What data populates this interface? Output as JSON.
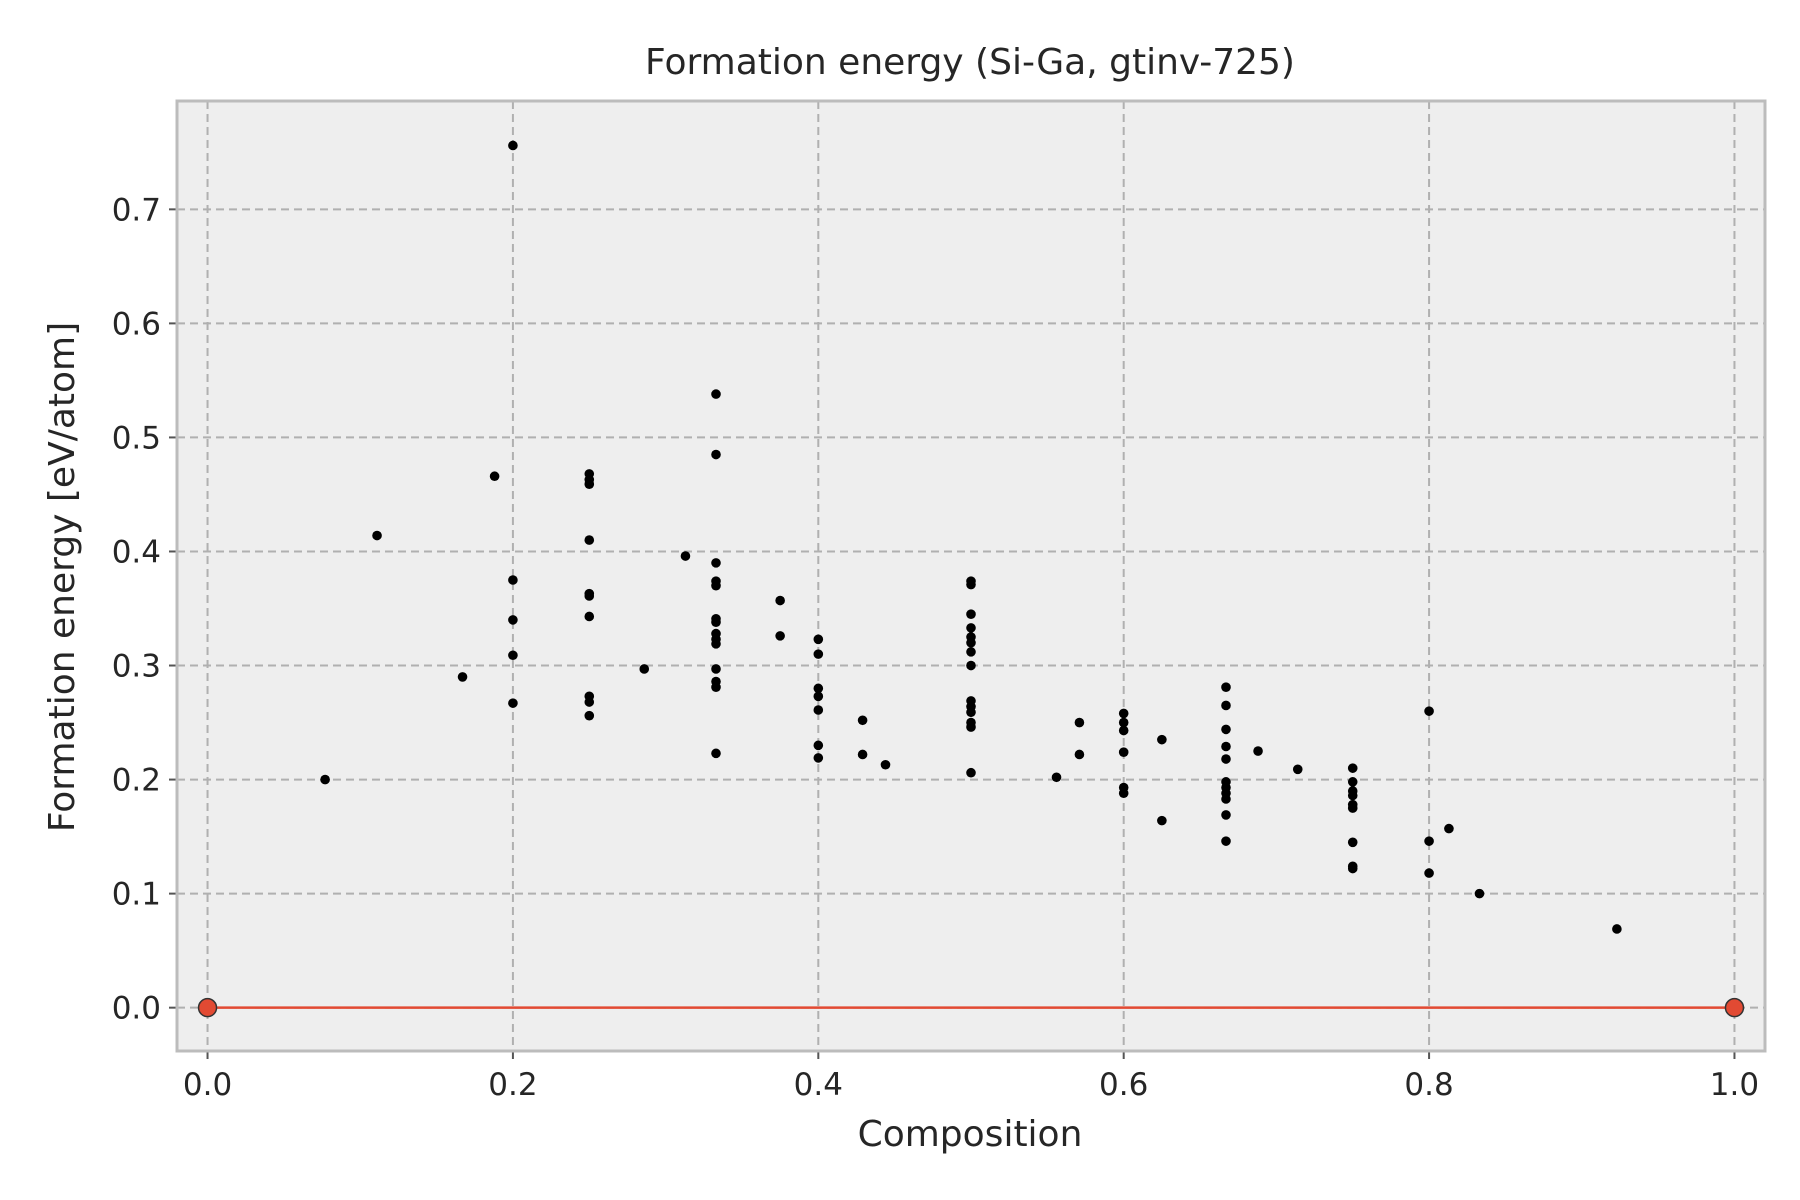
{
  "chart_data": {
    "type": "scatter",
    "title": "Formation energy (Si-Ga, gtinv-725)",
    "xlabel": "Composition",
    "ylabel": "Formation energy [eV/atom]",
    "xlim": [
      -0.02,
      1.02
    ],
    "ylim": [
      -0.038,
      0.795
    ],
    "x_ticks": [
      0.0,
      0.2,
      0.4,
      0.6,
      0.8,
      1.0
    ],
    "y_ticks": [
      0.0,
      0.1,
      0.2,
      0.3,
      0.4,
      0.5,
      0.6,
      0.7
    ],
    "x_tick_labels": [
      "0.0",
      "0.2",
      "0.4",
      "0.6",
      "0.8",
      "1.0"
    ],
    "y_tick_labels": [
      "0.0",
      "0.1",
      "0.2",
      "0.3",
      "0.4",
      "0.5",
      "0.6",
      "0.7"
    ],
    "grid": true,
    "colors": {
      "background": "#eeeeee",
      "grid": "#b0b0b0",
      "points": "#000000",
      "hull": "#e24a33",
      "frame": "#bcbcbc"
    },
    "series": [
      {
        "kind": "scatter",
        "color": "#000000",
        "points": [
          [
            0.077,
            0.2
          ],
          [
            0.111,
            0.414
          ],
          [
            0.167,
            0.29
          ],
          [
            0.188,
            0.466
          ],
          [
            0.2,
            0.756
          ],
          [
            0.2,
            0.375
          ],
          [
            0.2,
            0.34
          ],
          [
            0.2,
            0.309
          ],
          [
            0.2,
            0.267
          ],
          [
            0.25,
            0.468
          ],
          [
            0.25,
            0.463
          ],
          [
            0.25,
            0.459
          ],
          [
            0.25,
            0.41
          ],
          [
            0.25,
            0.363
          ],
          [
            0.25,
            0.361
          ],
          [
            0.25,
            0.343
          ],
          [
            0.25,
            0.273
          ],
          [
            0.25,
            0.268
          ],
          [
            0.25,
            0.256
          ],
          [
            0.286,
            0.297
          ],
          [
            0.313,
            0.396
          ],
          [
            0.333,
            0.538
          ],
          [
            0.333,
            0.485
          ],
          [
            0.333,
            0.39
          ],
          [
            0.333,
            0.374
          ],
          [
            0.333,
            0.37
          ],
          [
            0.333,
            0.341
          ],
          [
            0.333,
            0.338
          ],
          [
            0.333,
            0.328
          ],
          [
            0.333,
            0.323
          ],
          [
            0.333,
            0.319
          ],
          [
            0.333,
            0.297
          ],
          [
            0.333,
            0.286
          ],
          [
            0.333,
            0.281
          ],
          [
            0.333,
            0.223
          ],
          [
            0.375,
            0.357
          ],
          [
            0.375,
            0.326
          ],
          [
            0.4,
            0.323
          ],
          [
            0.4,
            0.31
          ],
          [
            0.4,
            0.28
          ],
          [
            0.4,
            0.273
          ],
          [
            0.4,
            0.261
          ],
          [
            0.4,
            0.23
          ],
          [
            0.4,
            0.219
          ],
          [
            0.429,
            0.252
          ],
          [
            0.429,
            0.222
          ],
          [
            0.444,
            0.213
          ],
          [
            0.5,
            0.374
          ],
          [
            0.5,
            0.371
          ],
          [
            0.5,
            0.345
          ],
          [
            0.5,
            0.333
          ],
          [
            0.5,
            0.325
          ],
          [
            0.5,
            0.32
          ],
          [
            0.5,
            0.312
          ],
          [
            0.5,
            0.3
          ],
          [
            0.5,
            0.269
          ],
          [
            0.5,
            0.264
          ],
          [
            0.5,
            0.259
          ],
          [
            0.5,
            0.25
          ],
          [
            0.5,
            0.246
          ],
          [
            0.5,
            0.206
          ],
          [
            0.556,
            0.202
          ],
          [
            0.571,
            0.25
          ],
          [
            0.571,
            0.222
          ],
          [
            0.6,
            0.258
          ],
          [
            0.6,
            0.25
          ],
          [
            0.6,
            0.243
          ],
          [
            0.6,
            0.224
          ],
          [
            0.6,
            0.193
          ],
          [
            0.6,
            0.188
          ],
          [
            0.625,
            0.235
          ],
          [
            0.625,
            0.164
          ],
          [
            0.667,
            0.281
          ],
          [
            0.667,
            0.265
          ],
          [
            0.667,
            0.244
          ],
          [
            0.667,
            0.229
          ],
          [
            0.667,
            0.218
          ],
          [
            0.667,
            0.198
          ],
          [
            0.667,
            0.193
          ],
          [
            0.667,
            0.188
          ],
          [
            0.667,
            0.183
          ],
          [
            0.667,
            0.169
          ],
          [
            0.667,
            0.146
          ],
          [
            0.688,
            0.225
          ],
          [
            0.714,
            0.209
          ],
          [
            0.75,
            0.21
          ],
          [
            0.75,
            0.198
          ],
          [
            0.75,
            0.19
          ],
          [
            0.75,
            0.186
          ],
          [
            0.75,
            0.178
          ],
          [
            0.75,
            0.175
          ],
          [
            0.75,
            0.145
          ],
          [
            0.75,
            0.124
          ],
          [
            0.75,
            0.122
          ],
          [
            0.8,
            0.26
          ],
          [
            0.8,
            0.146
          ],
          [
            0.8,
            0.118
          ],
          [
            0.813,
            0.157
          ],
          [
            0.833,
            0.1
          ],
          [
            0.923,
            0.069
          ]
        ]
      },
      {
        "kind": "hull",
        "color": "#e24a33",
        "points": [
          [
            0.0,
            0.0
          ],
          [
            1.0,
            0.0
          ]
        ]
      }
    ]
  }
}
